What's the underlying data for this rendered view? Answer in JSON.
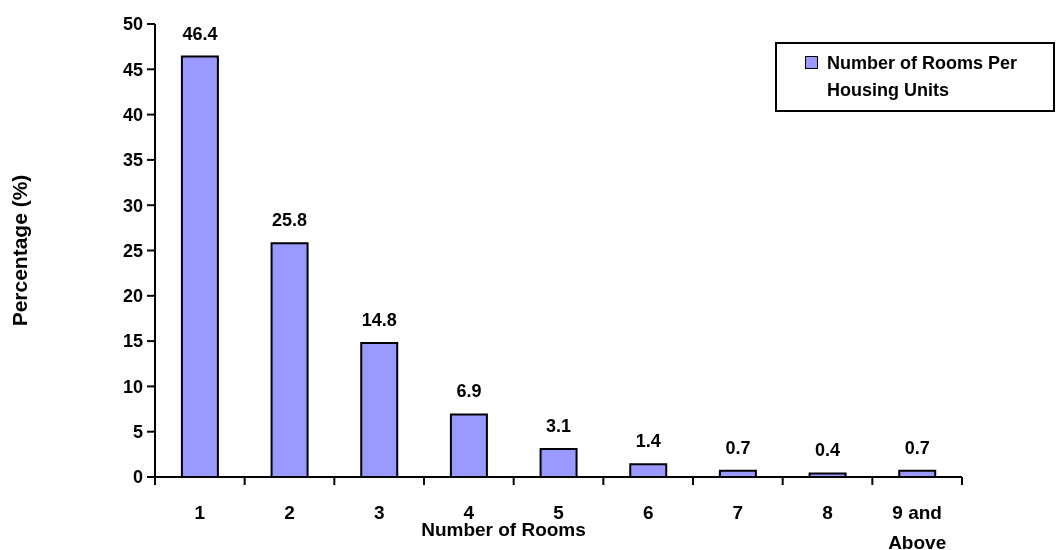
{
  "chart_data": {
    "type": "bar",
    "categories": [
      "1",
      "2",
      "3",
      "4",
      "5",
      "6",
      "7",
      "8",
      "9 and Above"
    ],
    "series": [
      {
        "name": "Number of Rooms Per Housing Units",
        "color": "#9999ff",
        "values": [
          46.4,
          25.8,
          14.8,
          6.9,
          3.1,
          1.4,
          0.7,
          0.4,
          0.7
        ]
      }
    ],
    "xlabel": "Number of Rooms",
    "ylabel": "Percentage (%)",
    "ylim": [
      0,
      50
    ],
    "yticks": [
      0,
      5,
      10,
      15,
      20,
      25,
      30,
      35,
      40,
      45,
      50
    ],
    "data_labels": true,
    "legend": "top right"
  }
}
